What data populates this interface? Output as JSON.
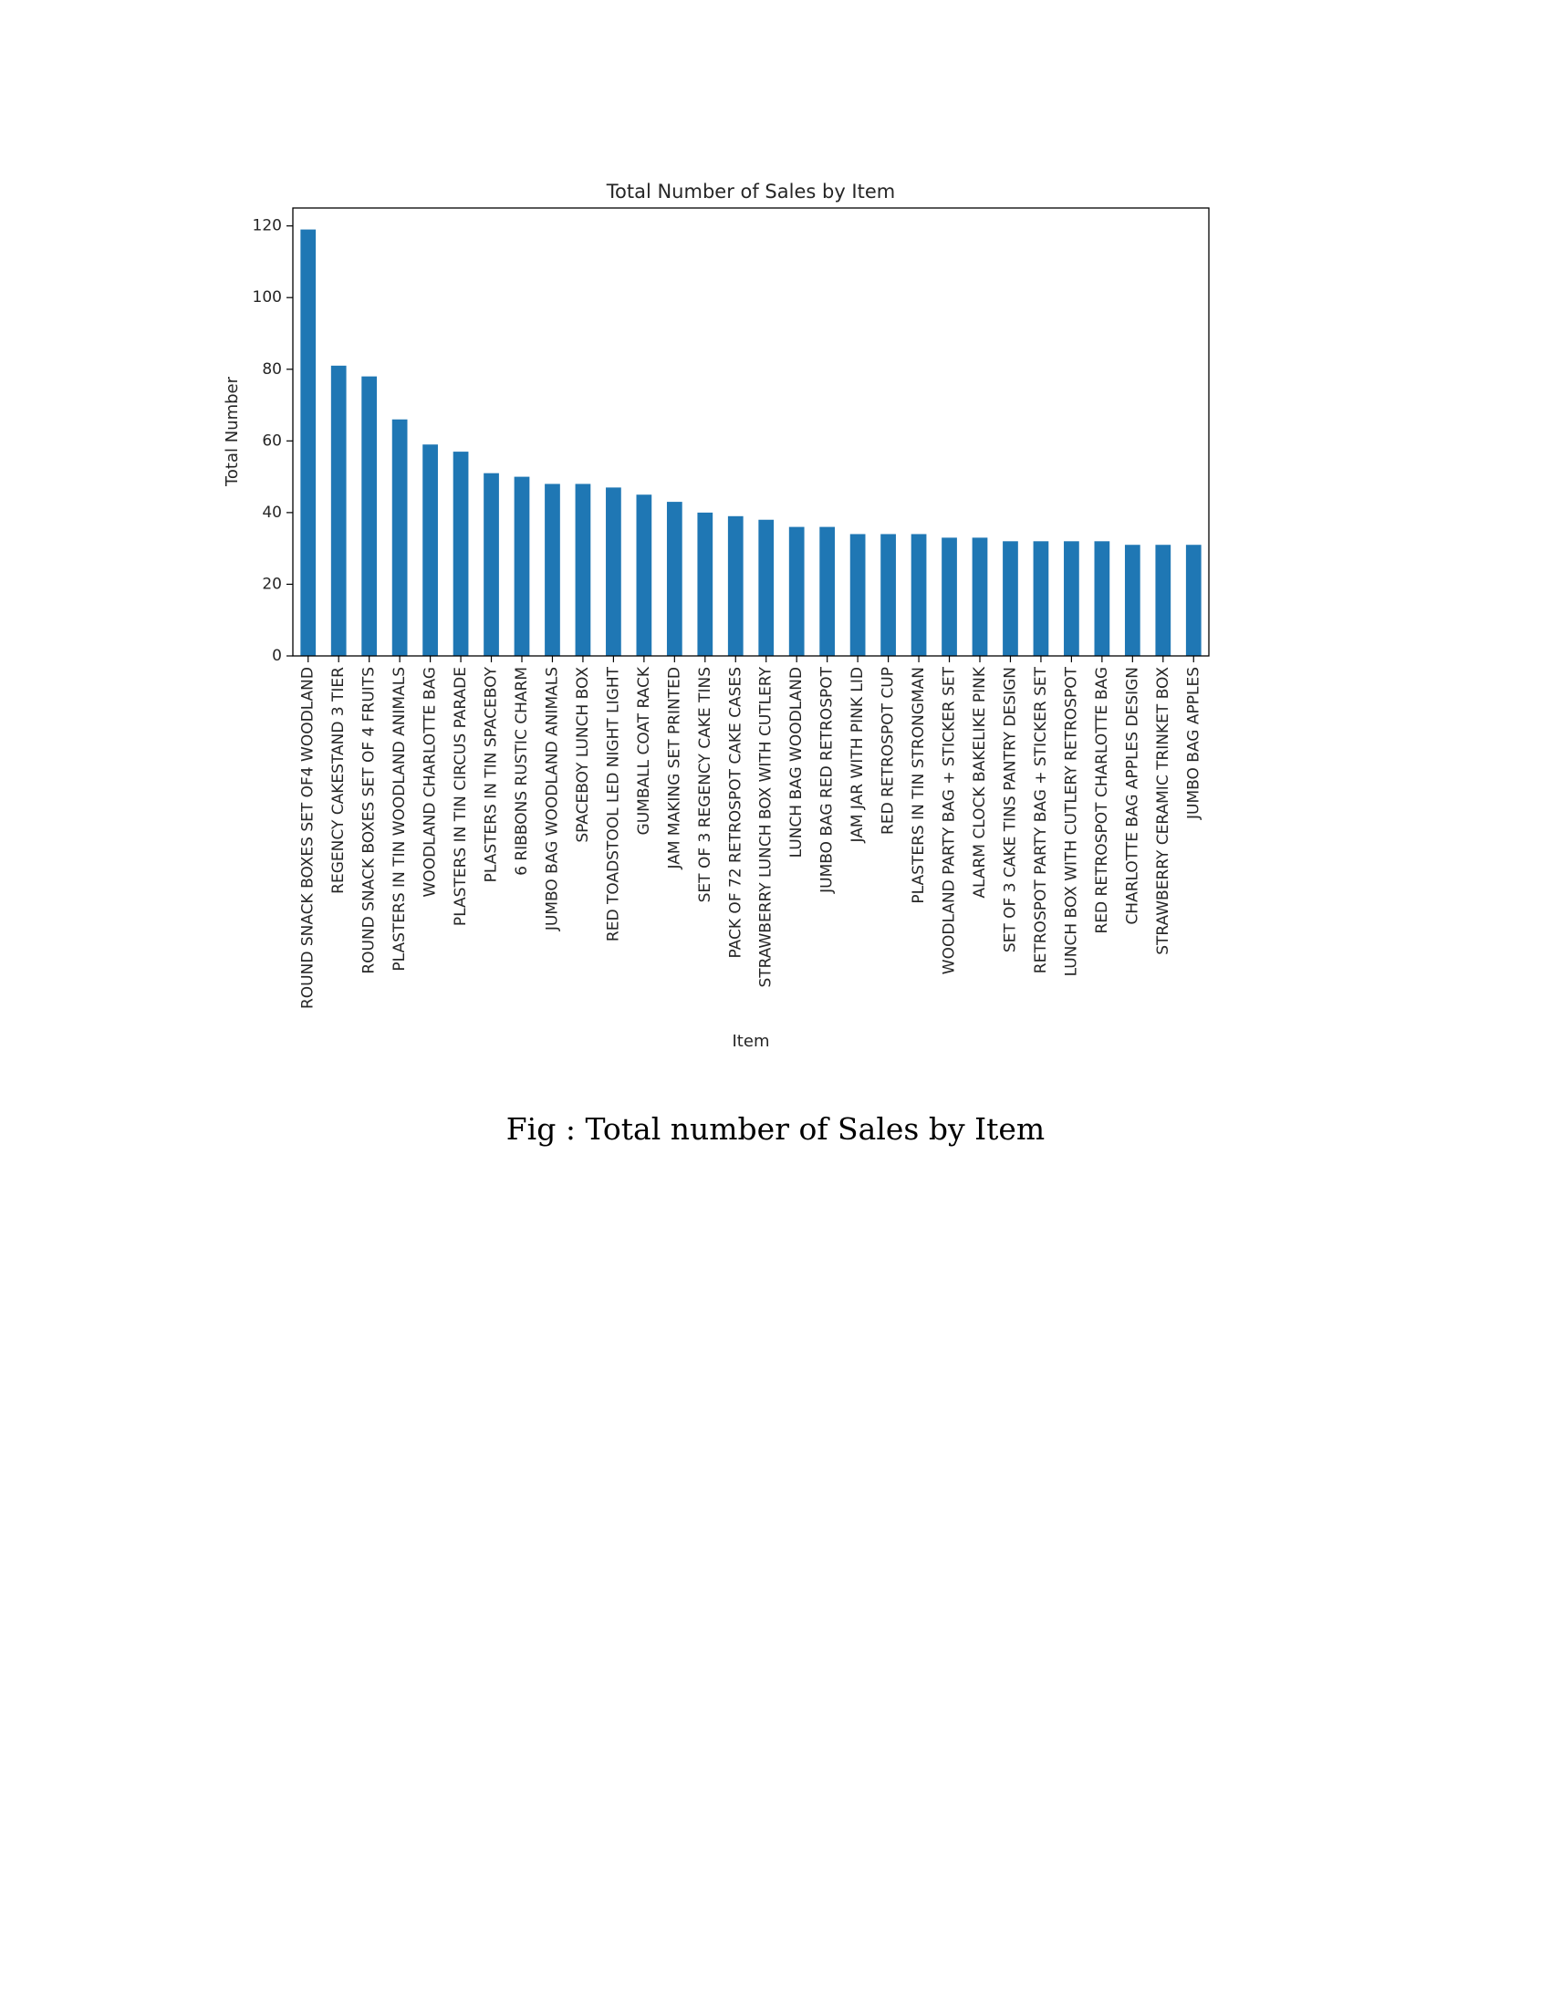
{
  "caption": "Fig : Total number of Sales by Item",
  "chart_data": {
    "type": "bar",
    "title": "Total Number of Sales by Item",
    "xlabel": "Item",
    "ylabel": "Total Number",
    "ylim": [
      0,
      125
    ],
    "yticks": [
      0,
      20,
      40,
      60,
      80,
      100,
      120
    ],
    "grid": false,
    "bar_color": "#1f77b4",
    "categories": [
      "ROUND SNACK BOXES SET OF4 WOODLAND",
      "REGENCY CAKESTAND 3 TIER",
      "ROUND SNACK BOXES SET OF 4 FRUITS",
      "PLASTERS IN TIN WOODLAND ANIMALS",
      "WOODLAND CHARLOTTE BAG",
      "PLASTERS IN TIN CIRCUS PARADE",
      "PLASTERS IN TIN SPACEBOY",
      "6 RIBBONS RUSTIC CHARM",
      "JUMBO BAG WOODLAND ANIMALS",
      "SPACEBOY LUNCH BOX",
      "RED TOADSTOOL LED NIGHT LIGHT",
      "GUMBALL COAT RACK",
      "JAM MAKING SET PRINTED",
      "SET OF 3 REGENCY CAKE TINS",
      "PACK OF 72 RETROSPOT CAKE CASES",
      "STRAWBERRY LUNCH BOX WITH CUTLERY",
      "LUNCH BAG WOODLAND",
      "JUMBO BAG RED RETROSPOT",
      "JAM JAR WITH PINK LID",
      "RED RETROSPOT CUP",
      "PLASTERS IN TIN STRONGMAN",
      "WOODLAND PARTY BAG + STICKER SET",
      "ALARM CLOCK BAKELIKE PINK",
      "SET OF 3 CAKE TINS PANTRY DESIGN",
      "RETROSPOT PARTY BAG + STICKER SET",
      "LUNCH BOX WITH CUTLERY RETROSPOT",
      "RED RETROSPOT CHARLOTTE BAG",
      "CHARLOTTE BAG APPLES DESIGN",
      "STRAWBERRY CERAMIC TRINKET BOX",
      "JUMBO BAG APPLES"
    ],
    "values": [
      119,
      81,
      78,
      66,
      59,
      57,
      51,
      50,
      48,
      48,
      47,
      45,
      43,
      40,
      39,
      38,
      36,
      36,
      34,
      34,
      34,
      33,
      33,
      32,
      32,
      32,
      32,
      31,
      31,
      31
    ]
  }
}
